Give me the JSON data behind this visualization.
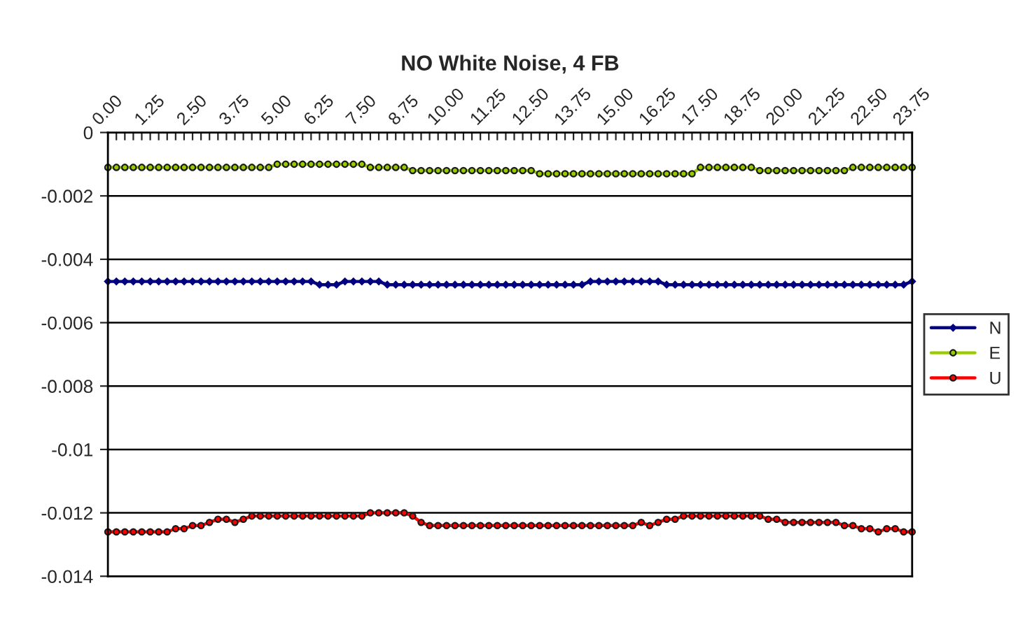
{
  "chart_data": {
    "type": "line",
    "title": "NO White Noise, 4 FB",
    "categories": [
      "0.00",
      null,
      null,
      null,
      null,
      "1.25",
      null,
      null,
      null,
      null,
      "2.50",
      null,
      null,
      null,
      null,
      "3.75",
      null,
      null,
      null,
      null,
      "5.00",
      null,
      null,
      null,
      null,
      "6.25",
      null,
      null,
      null,
      null,
      "7.50",
      null,
      null,
      null,
      null,
      "8.75",
      null,
      null,
      null,
      null,
      "10.00",
      null,
      null,
      null,
      null,
      "11.25",
      null,
      null,
      null,
      null,
      "12.50",
      null,
      null,
      null,
      null,
      "13.75",
      null,
      null,
      null,
      null,
      "15.00",
      null,
      null,
      null,
      null,
      "16.25",
      null,
      null,
      null,
      null,
      "17.50",
      null,
      null,
      null,
      null,
      "18.75",
      null,
      null,
      null,
      null,
      "20.00",
      null,
      null,
      null,
      null,
      "21.25",
      null,
      null,
      null,
      null,
      "22.50",
      null,
      null,
      null,
      null,
      "23.75"
    ],
    "series": [
      {
        "name": "N",
        "color": "#000080",
        "marker": "diamond",
        "values": [
          -0.0047,
          -0.0047,
          -0.0047,
          -0.0047,
          -0.0047,
          -0.0047,
          -0.0047,
          -0.0047,
          -0.0047,
          -0.0047,
          -0.0047,
          -0.0047,
          -0.0047,
          -0.0047,
          -0.0047,
          -0.0047,
          -0.0047,
          -0.0047,
          -0.0047,
          -0.0047,
          -0.0047,
          -0.0047,
          -0.0047,
          -0.0047,
          -0.0047,
          -0.0048,
          -0.0048,
          -0.0048,
          -0.0047,
          -0.0047,
          -0.0047,
          -0.0047,
          -0.0047,
          -0.0048,
          -0.0048,
          -0.0048,
          -0.0048,
          -0.0048,
          -0.0048,
          -0.0048,
          -0.0048,
          -0.0048,
          -0.0048,
          -0.0048,
          -0.0048,
          -0.0048,
          -0.0048,
          -0.0048,
          -0.0048,
          -0.0048,
          -0.0048,
          -0.0048,
          -0.0048,
          -0.0048,
          -0.0048,
          -0.0048,
          -0.0048,
          -0.0047,
          -0.0047,
          -0.0047,
          -0.0047,
          -0.0047,
          -0.0047,
          -0.0047,
          -0.0047,
          -0.0047,
          -0.0048,
          -0.0048,
          -0.0048,
          -0.0048,
          -0.0048,
          -0.0048,
          -0.0048,
          -0.0048,
          -0.0048,
          -0.0048,
          -0.0048,
          -0.0048,
          -0.0048,
          -0.0048,
          -0.0048,
          -0.0048,
          -0.0048,
          -0.0048,
          -0.0048,
          -0.0048,
          -0.0048,
          -0.0048,
          -0.0048,
          -0.0048,
          -0.0048,
          -0.0048,
          -0.0048,
          -0.0048,
          -0.0048,
          -0.0047
        ]
      },
      {
        "name": "E",
        "color": "#99cc00",
        "marker": "circle",
        "values": [
          -0.0011,
          -0.0011,
          -0.0011,
          -0.0011,
          -0.0011,
          -0.0011,
          -0.0011,
          -0.0011,
          -0.0011,
          -0.0011,
          -0.0011,
          -0.0011,
          -0.0011,
          -0.0011,
          -0.0011,
          -0.0011,
          -0.0011,
          -0.0011,
          -0.0011,
          -0.0011,
          -0.001,
          -0.001,
          -0.001,
          -0.001,
          -0.001,
          -0.001,
          -0.001,
          -0.001,
          -0.001,
          -0.001,
          -0.001,
          -0.0011,
          -0.0011,
          -0.0011,
          -0.0011,
          -0.0011,
          -0.0012,
          -0.0012,
          -0.0012,
          -0.0012,
          -0.0012,
          -0.0012,
          -0.0012,
          -0.0012,
          -0.0012,
          -0.0012,
          -0.0012,
          -0.0012,
          -0.0012,
          -0.0012,
          -0.0012,
          -0.0013,
          -0.0013,
          -0.0013,
          -0.0013,
          -0.0013,
          -0.0013,
          -0.0013,
          -0.0013,
          -0.0013,
          -0.0013,
          -0.0013,
          -0.0013,
          -0.0013,
          -0.0013,
          -0.0013,
          -0.0013,
          -0.0013,
          -0.0013,
          -0.0013,
          -0.0011,
          -0.0011,
          -0.0011,
          -0.0011,
          -0.0011,
          -0.0011,
          -0.0011,
          -0.0012,
          -0.0012,
          -0.0012,
          -0.0012,
          -0.0012,
          -0.0012,
          -0.0012,
          -0.0012,
          -0.0012,
          -0.0012,
          -0.0012,
          -0.0011,
          -0.0011,
          -0.0011,
          -0.0011,
          -0.0011,
          -0.0011,
          -0.0011,
          -0.0011
        ]
      },
      {
        "name": "U",
        "color": "#ff0000",
        "marker": "circle",
        "values": [
          -0.0126,
          -0.0126,
          -0.0126,
          -0.0126,
          -0.0126,
          -0.0126,
          -0.0126,
          -0.0126,
          -0.0125,
          -0.0125,
          -0.0124,
          -0.0124,
          -0.0123,
          -0.0122,
          -0.0122,
          -0.0123,
          -0.0122,
          -0.0121,
          -0.0121,
          -0.0121,
          -0.0121,
          -0.0121,
          -0.0121,
          -0.0121,
          -0.0121,
          -0.0121,
          -0.0121,
          -0.0121,
          -0.0121,
          -0.0121,
          -0.0121,
          -0.012,
          -0.012,
          -0.012,
          -0.012,
          -0.012,
          -0.0121,
          -0.0123,
          -0.0124,
          -0.0124,
          -0.0124,
          -0.0124,
          -0.0124,
          -0.0124,
          -0.0124,
          -0.0124,
          -0.0124,
          -0.0124,
          -0.0124,
          -0.0124,
          -0.0124,
          -0.0124,
          -0.0124,
          -0.0124,
          -0.0124,
          -0.0124,
          -0.0124,
          -0.0124,
          -0.0124,
          -0.0124,
          -0.0124,
          -0.0124,
          -0.0124,
          -0.0123,
          -0.0124,
          -0.0123,
          -0.0122,
          -0.0122,
          -0.0121,
          -0.0121,
          -0.0121,
          -0.0121,
          -0.0121,
          -0.0121,
          -0.0121,
          -0.0121,
          -0.0121,
          -0.0121,
          -0.0122,
          -0.0122,
          -0.0123,
          -0.0123,
          -0.0123,
          -0.0123,
          -0.0123,
          -0.0123,
          -0.0123,
          -0.0124,
          -0.0124,
          -0.0125,
          -0.0125,
          -0.0126,
          -0.0125,
          -0.0125,
          -0.0126,
          -0.0126
        ]
      }
    ],
    "ylim": [
      -0.014,
      0
    ],
    "yticks": [
      -0.014,
      -0.012,
      -0.01,
      -0.008,
      -0.006,
      -0.004,
      -0.002,
      0
    ],
    "grid": "y",
    "legend": "right"
  }
}
